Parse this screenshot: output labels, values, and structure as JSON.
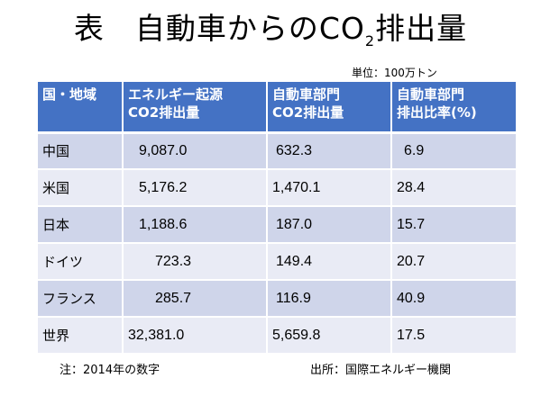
{
  "title": {
    "prefix": "表",
    "main": "自動車からのCO",
    "subscript": "2",
    "suffix": "排出量"
  },
  "unit": "単位：100万トン",
  "table": {
    "headers": [
      {
        "line1": "国・地域",
        "line2": ""
      },
      {
        "line1": "エネルギー起源",
        "line2": "CO2排出量"
      },
      {
        "line1": "自動車部門",
        "line2": "CO2排出量"
      },
      {
        "line1": "自動車部門",
        "line2": "排出比率(%)"
      }
    ],
    "rows": [
      {
        "region": "中国",
        "energy_co2": "9,087.0",
        "auto_co2": "632.3",
        "auto_ratio": "6.9"
      },
      {
        "region": "米国",
        "energy_co2": "5,176.2",
        "auto_co2": "1,470.1",
        "auto_ratio": "28.4"
      },
      {
        "region": "日本",
        "energy_co2": "1,188.6",
        "auto_co2": "187.0",
        "auto_ratio": "15.7"
      },
      {
        "region": "ドイツ",
        "energy_co2": "723.3",
        "auto_co2": "149.4",
        "auto_ratio": "20.7"
      },
      {
        "region": "フランス",
        "energy_co2": "285.7",
        "auto_co2": "116.9",
        "auto_ratio": "40.9"
      },
      {
        "region": "世界",
        "energy_co2": "32,381.0",
        "auto_co2": "5,659.8",
        "auto_ratio": "17.5"
      }
    ]
  },
  "note": "注：2014年の数字",
  "source": "出所：国際エネルギー機関",
  "colors": {
    "header_bg": "#4472c4",
    "row_odd": "#cfd5ea",
    "row_even": "#e9ebf5"
  }
}
